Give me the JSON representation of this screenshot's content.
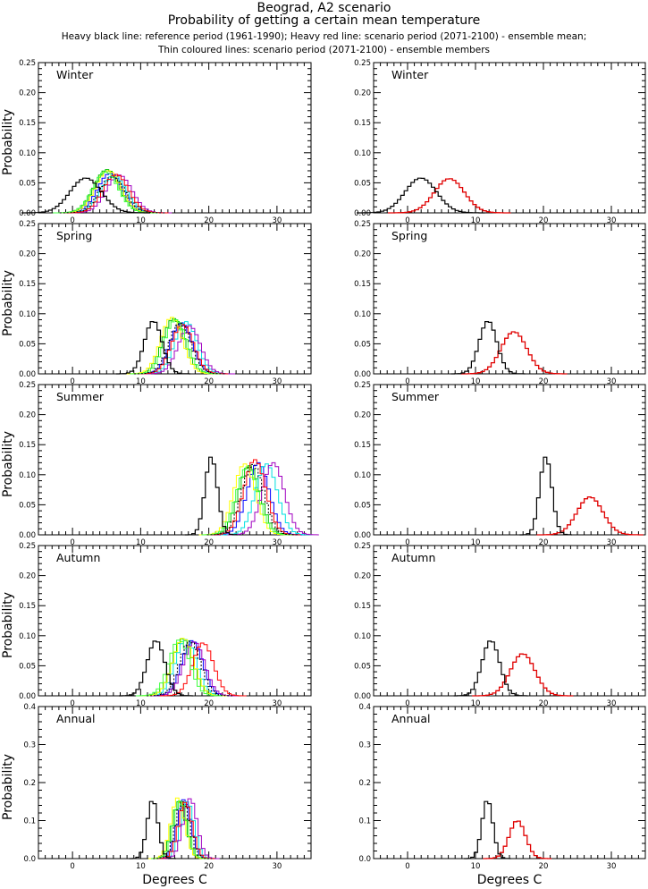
{
  "title_line1": "Beograd, A2 scenario",
  "title_line2": "Probability of getting a certain mean temperature",
  "title_line3": "Heavy black line: reference period (1961-1990); Heavy red line: scenario period (2071-2100) - ensemble mean;",
  "title_line4": "Thin coloured lines: scenario period (2071-2100) - ensemble members",
  "ylabel": "Probability",
  "xlabel": "Degrees C",
  "xlim": [
    -5,
    35
  ],
  "xticks": [
    0,
    10,
    20,
    30
  ],
  "colors": {
    "reference": "#000000",
    "ensemble_mean": "#e00000",
    "members": [
      "#00c000",
      "#0000ff",
      "#00e0e0",
      "#a000c0",
      "#ffff00",
      "#ff0000",
      "#40ff40",
      "#000000"
    ]
  },
  "chart_data": [
    {
      "type": "line",
      "season": "Winter",
      "title": "Winter",
      "ylim": [
        0,
        0.25
      ],
      "yticks": [
        0.0,
        0.05,
        0.1,
        0.15,
        0.2,
        0.25
      ],
      "reference": {
        "mean": 1.7,
        "sd": 2.3,
        "peak": 0.058
      },
      "ensemble_mean": {
        "mean": 5.9,
        "sd": 2.2,
        "peak": 0.057
      },
      "members": [
        {
          "mean": 4.8,
          "peak": 0.072
        },
        {
          "mean": 5.3,
          "peak": 0.066
        },
        {
          "mean": 5.8,
          "peak": 0.062
        },
        {
          "mean": 6.6,
          "peak": 0.063
        },
        {
          "mean": 5.0,
          "peak": 0.07
        },
        {
          "mean": 6.1,
          "peak": 0.064
        },
        {
          "mean": 4.6,
          "peak": 0.068
        },
        {
          "mean": 5.6,
          "peak": 0.06
        }
      ]
    },
    {
      "type": "line",
      "season": "Spring",
      "title": "Spring",
      "ylim": [
        0,
        0.25
      ],
      "yticks": [
        0.0,
        0.05,
        0.1,
        0.15,
        0.2,
        0.25
      ],
      "reference": {
        "mean": 11.6,
        "sd": 1.3,
        "peak": 0.088
      },
      "ensemble_mean": {
        "mean": 15.4,
        "sd": 1.9,
        "peak": 0.07
      },
      "members": [
        {
          "mean": 14.6,
          "peak": 0.092
        },
        {
          "mean": 15.7,
          "peak": 0.085
        },
        {
          "mean": 16.4,
          "peak": 0.087
        },
        {
          "mean": 16.9,
          "peak": 0.08
        },
        {
          "mean": 14.3,
          "peak": 0.094
        },
        {
          "mean": 15.9,
          "peak": 0.082
        },
        {
          "mean": 14.9,
          "peak": 0.09
        },
        {
          "mean": 15.5,
          "peak": 0.084
        }
      ]
    },
    {
      "type": "line",
      "season": "Summer",
      "title": "Summer",
      "ylim": [
        0,
        0.25
      ],
      "yticks": [
        0.0,
        0.05,
        0.1,
        0.15,
        0.2,
        0.25
      ],
      "reference": {
        "mean": 20.1,
        "sd": 0.9,
        "peak": 0.13
      },
      "ensemble_mean": {
        "mean": 26.6,
        "sd": 1.9,
        "peak": 0.063
      },
      "members": [
        {
          "mean": 25.7,
          "peak": 0.115
        },
        {
          "mean": 27.0,
          "peak": 0.12
        },
        {
          "mean": 28.2,
          "peak": 0.118
        },
        {
          "mean": 29.2,
          "peak": 0.12
        },
        {
          "mean": 25.0,
          "peak": 0.118
        },
        {
          "mean": 26.5,
          "peak": 0.125
        },
        {
          "mean": 25.4,
          "peak": 0.113
        },
        {
          "mean": 26.2,
          "peak": 0.117
        }
      ]
    },
    {
      "type": "line",
      "season": "Autumn",
      "title": "Autumn",
      "ylim": [
        0,
        0.25
      ],
      "yticks": [
        0.0,
        0.05,
        0.1,
        0.15,
        0.2,
        0.25
      ],
      "reference": {
        "mean": 12.0,
        "sd": 1.3,
        "peak": 0.092
      },
      "ensemble_mean": {
        "mean": 16.7,
        "sd": 1.8,
        "peak": 0.07
      },
      "members": [
        {
          "mean": 15.9,
          "peak": 0.095
        },
        {
          "mean": 17.3,
          "peak": 0.092
        },
        {
          "mean": 16.4,
          "peak": 0.094
        },
        {
          "mean": 17.6,
          "peak": 0.09
        },
        {
          "mean": 16.0,
          "peak": 0.096
        },
        {
          "mean": 18.9,
          "peak": 0.088
        },
        {
          "mean": 15.4,
          "peak": 0.093
        },
        {
          "mean": 17.0,
          "peak": 0.091
        }
      ]
    },
    {
      "type": "line",
      "season": "Annual",
      "title": "Annual",
      "ylim": [
        0,
        0.4
      ],
      "yticks": [
        0.0,
        0.1,
        0.2,
        0.3,
        0.4
      ],
      "reference": {
        "mean": 11.5,
        "sd": 0.8,
        "peak": 0.155
      },
      "ensemble_mean": {
        "mean": 15.9,
        "sd": 1.2,
        "peak": 0.1
      },
      "members": [
        {
          "mean": 15.4,
          "peak": 0.15
        },
        {
          "mean": 16.1,
          "peak": 0.155
        },
        {
          "mean": 16.6,
          "peak": 0.15
        },
        {
          "mean": 17.0,
          "peak": 0.158
        },
        {
          "mean": 15.2,
          "peak": 0.16
        },
        {
          "mean": 16.3,
          "peak": 0.148
        },
        {
          "mean": 15.6,
          "peak": 0.152
        },
        {
          "mean": 15.9,
          "peak": 0.15
        }
      ]
    }
  ]
}
